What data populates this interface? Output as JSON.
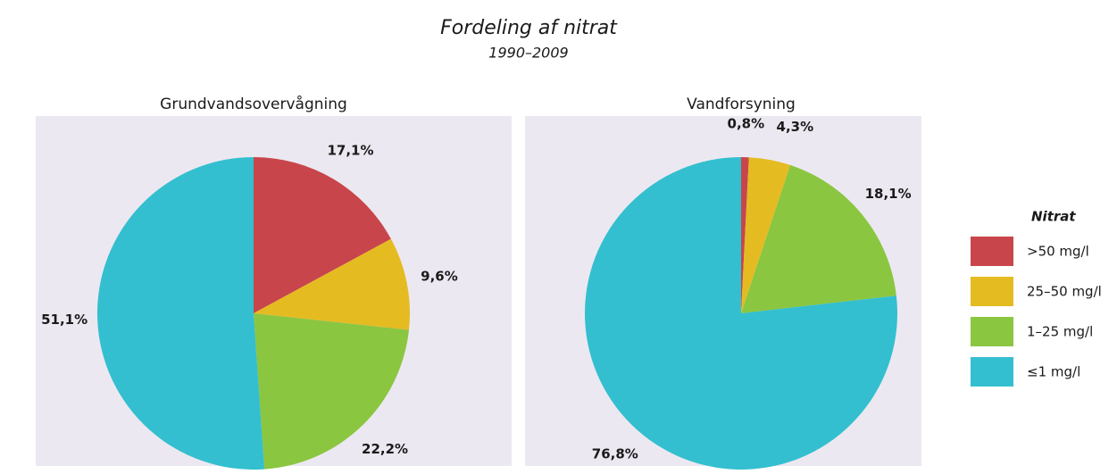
{
  "title": "Fordeling af nitrat",
  "subtitle": "1990–2009",
  "legend_title": "Nitrat",
  "chart_data": [
    {
      "type": "pie",
      "title": "Grundvandsovervågning",
      "categories": [
        ">50 mg/l",
        "25–50 mg/l",
        "1–25 mg/l",
        "≤1 mg/l"
      ],
      "values": [
        17.1,
        9.6,
        22.2,
        51.1
      ],
      "value_labels": [
        "17,1%",
        "9,6%",
        "22,2%",
        "51,1%"
      ],
      "colors": [
        "#c8464b",
        "#e5bb22",
        "#8bc641",
        "#33bfcf"
      ]
    },
    {
      "type": "pie",
      "title": "Vandforsyning",
      "categories": [
        ">50 mg/l",
        "25–50 mg/l",
        "1–25 mg/l",
        "≤1 mg/l"
      ],
      "values": [
        0.8,
        4.3,
        18.1,
        76.8
      ],
      "value_labels": [
        "0,8%",
        "4,3%",
        "18,1%",
        "76,8%"
      ],
      "colors": [
        "#c8464b",
        "#e5bb22",
        "#8bc641",
        "#33bfcf"
      ]
    }
  ]
}
